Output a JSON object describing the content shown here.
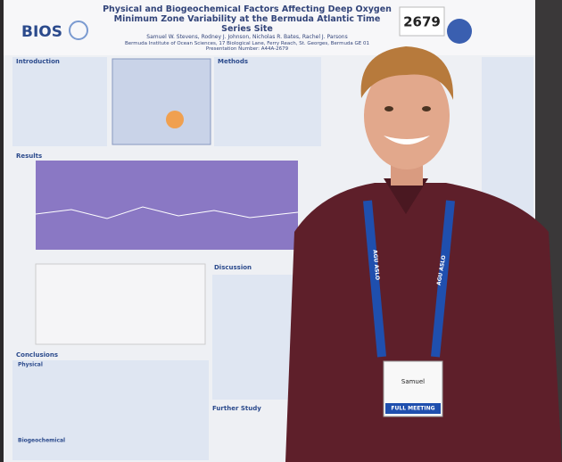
{
  "poster": {
    "logo": "BIOS",
    "title": "Physical and Biogeochemical Factors Affecting Deep Oxygen Minimum Zone Variability at the Bermuda Atlantic Time Series Site",
    "authors": "Samuel W. Stevens, Rodney J. Johnson, Nicholas R. Bates, Rachel J. Parsons",
    "affiliation": "Bermuda Institute of Ocean Sciences, 17 Biological Lane, Ferry Reach, St. Georges, Bermuda GE 01",
    "presentation": "Presentation Number: A44A-2679",
    "sections": [
      "Introduction",
      "Methods",
      "Results",
      "Discussion",
      "Conclusions",
      "Further Study"
    ],
    "subheadings": [
      "Physical",
      "Biogeochemical"
    ]
  },
  "number_card": "2679",
  "badge": {
    "name": "Samuel",
    "ribbon": "FULL MEETING"
  },
  "lanyard": "AGU ASLO"
}
